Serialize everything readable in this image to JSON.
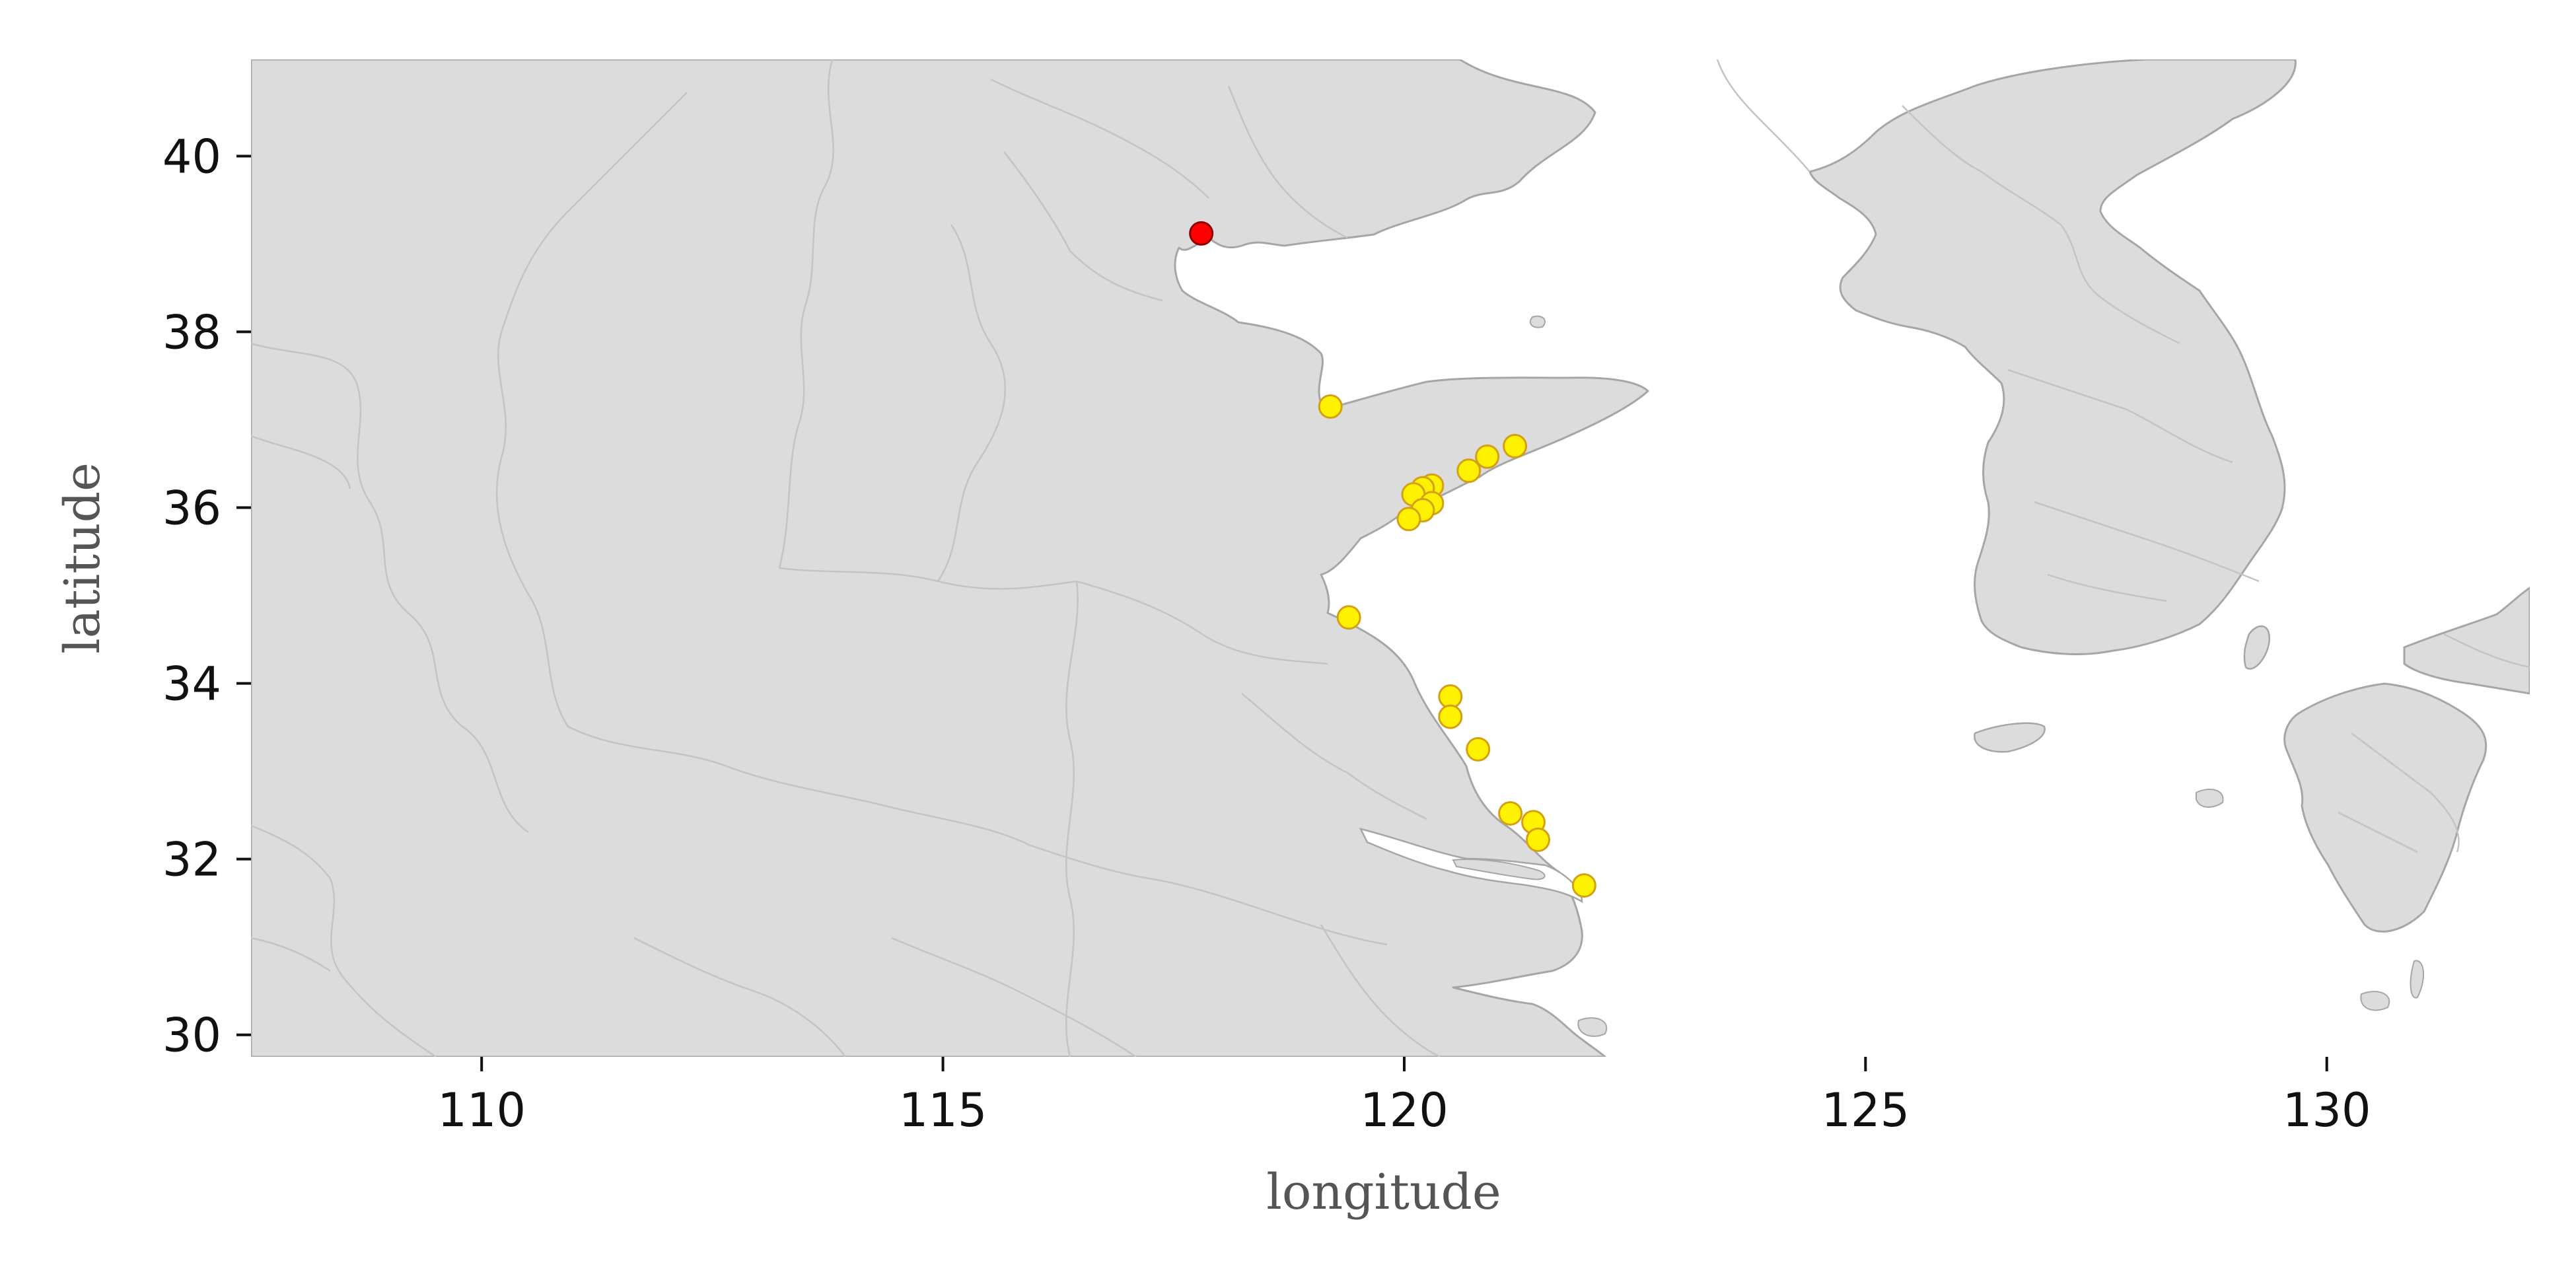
{
  "map": {
    "x_axis": {
      "label": "longitude",
      "range": [
        107.5,
        132.2
      ],
      "ticks": [
        {
          "value": 110,
          "label": "110"
        },
        {
          "value": 115,
          "label": "115"
        },
        {
          "value": 120,
          "label": "120"
        },
        {
          "value": 125,
          "label": "125"
        },
        {
          "value": 130,
          "label": "130"
        }
      ]
    },
    "y_axis": {
      "label": "latitude",
      "range": [
        29.75,
        41.1
      ],
      "ticks": [
        {
          "value": 30,
          "label": "30"
        },
        {
          "value": 32,
          "label": "32"
        },
        {
          "value": 34,
          "label": "34"
        },
        {
          "value": 36,
          "label": "36"
        },
        {
          "value": 38,
          "label": "38"
        },
        {
          "value": 40,
          "label": "40"
        }
      ]
    },
    "colors": {
      "land": "#dcdcdc",
      "sea": "#ffffff",
      "coast": "#a6a6a6",
      "border": "#c4c4c4",
      "point_default": "#fff200",
      "point_default_edge": "#d4a017",
      "point_highlight": "#ff0000",
      "point_highlight_edge": "#8b0000"
    },
    "points": [
      {
        "lon": 117.8,
        "lat": 39.12,
        "highlight": true
      },
      {
        "lon": 119.2,
        "lat": 37.15,
        "highlight": false
      },
      {
        "lon": 121.2,
        "lat": 36.7,
        "highlight": false
      },
      {
        "lon": 120.9,
        "lat": 36.58,
        "highlight": false
      },
      {
        "lon": 120.7,
        "lat": 36.42,
        "highlight": false
      },
      {
        "lon": 120.3,
        "lat": 36.25,
        "highlight": false
      },
      {
        "lon": 120.2,
        "lat": 36.22,
        "highlight": false
      },
      {
        "lon": 120.1,
        "lat": 36.15,
        "highlight": false
      },
      {
        "lon": 120.3,
        "lat": 36.05,
        "highlight": false
      },
      {
        "lon": 120.2,
        "lat": 35.97,
        "highlight": false
      },
      {
        "lon": 120.05,
        "lat": 35.87,
        "highlight": false
      },
      {
        "lon": 119.4,
        "lat": 34.75,
        "highlight": false
      },
      {
        "lon": 120.5,
        "lat": 33.85,
        "highlight": false
      },
      {
        "lon": 120.5,
        "lat": 33.62,
        "highlight": false
      },
      {
        "lon": 120.8,
        "lat": 33.25,
        "highlight": false
      },
      {
        "lon": 121.15,
        "lat": 32.52,
        "highlight": false
      },
      {
        "lon": 121.4,
        "lat": 32.42,
        "highlight": false
      },
      {
        "lon": 121.45,
        "lat": 32.22,
        "highlight": false
      },
      {
        "lon": 121.95,
        "lat": 31.7,
        "highlight": false
      }
    ]
  }
}
